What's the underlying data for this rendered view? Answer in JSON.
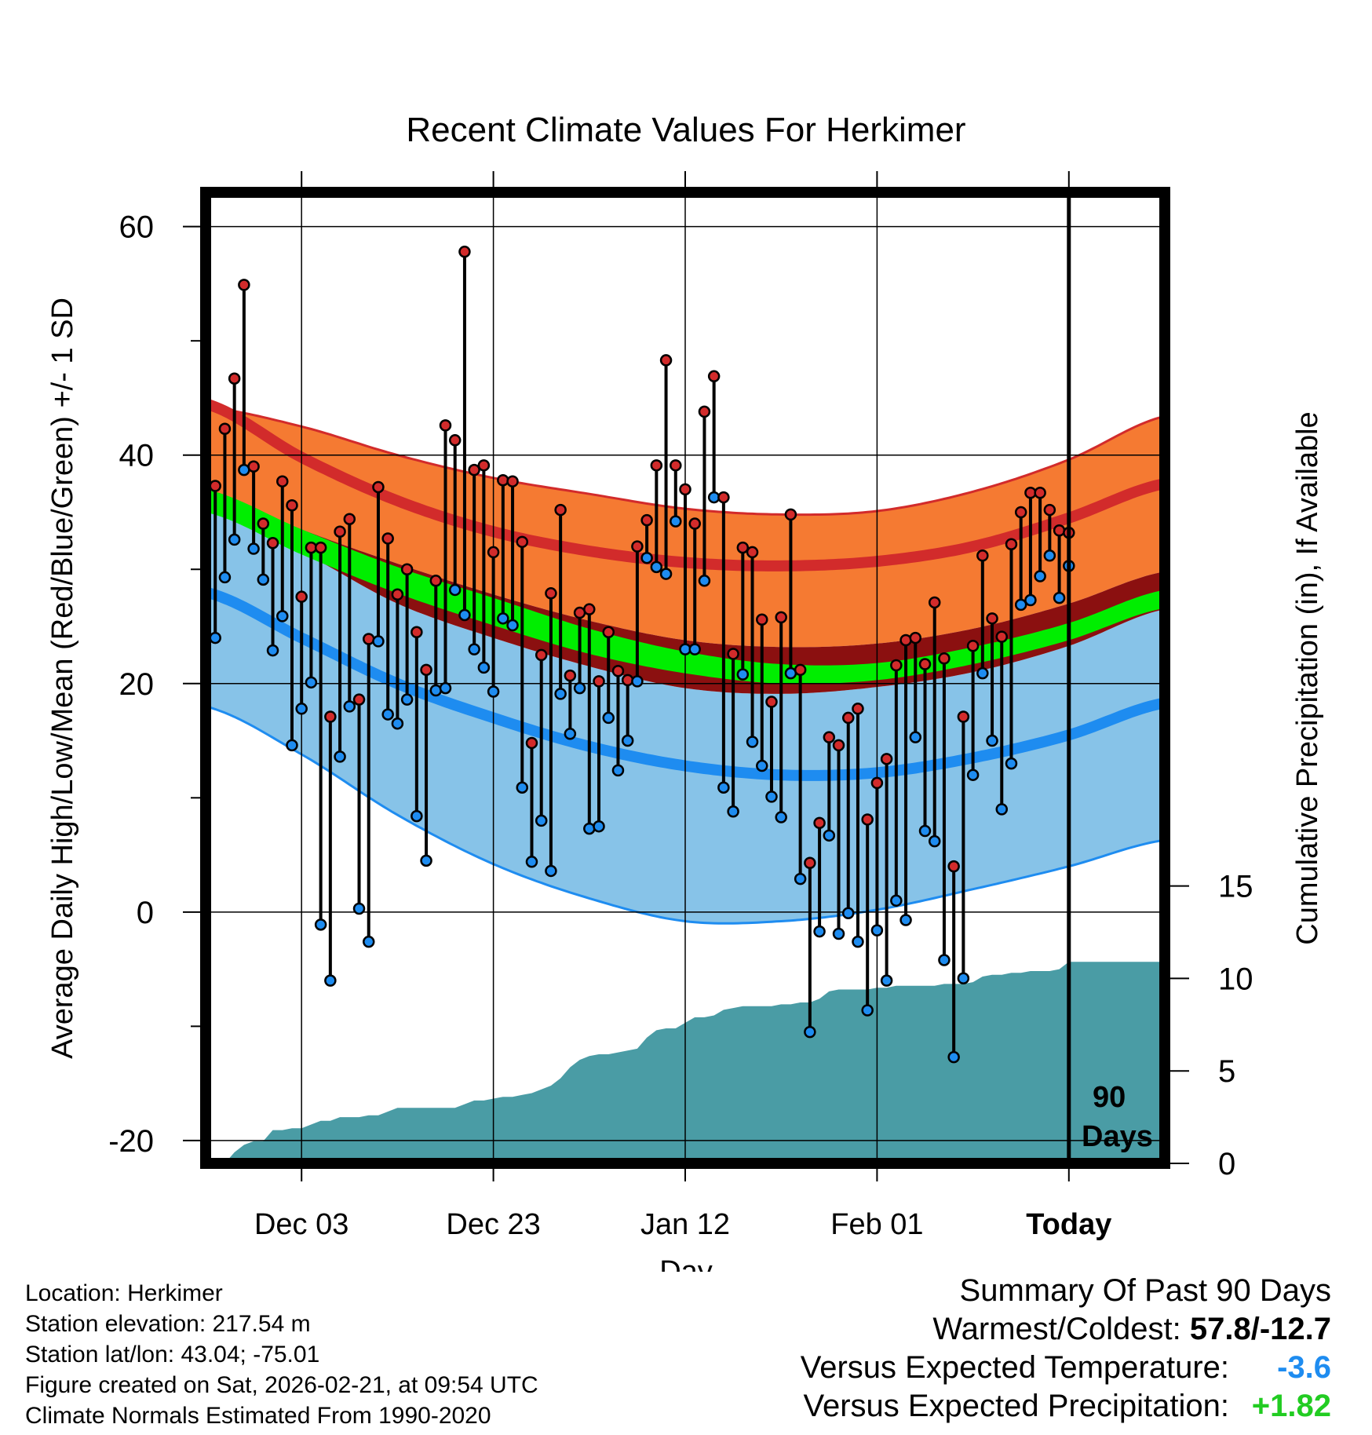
{
  "colors": {
    "high_band": "#f57a32",
    "high_band_edge": "#d22b2b",
    "high_mean_line": "#d22b2b",
    "low_band": "#87c3e8",
    "low_band_edge": "#1e8cf0",
    "low_mean_line": "#1e8cf0",
    "overlap_band": "#8b1010",
    "mean_band": "#00ee00",
    "precip_fill": "#4a9ca5",
    "high_dot": "#d22b2b",
    "low_dot": "#1e8cf0",
    "negative_departure": "#1e8cf0",
    "positive_departure": "#22cc22"
  },
  "chart_data": {
    "type": "line",
    "title": "Recent Climate Values For Herkimer",
    "xlabel": "Day",
    "ylabel": "Average Daily High/Low/Mean (Red/Blue/Green) +/- 1 SD",
    "ylabel_right": "Cumulative Precipitation (in), If Available",
    "xlim": [
      0,
      100
    ],
    "ylim": [
      -22,
      63
    ],
    "ylim_right": [
      0,
      52.5
    ],
    "yticks": [
      -20,
      0,
      20,
      40,
      60
    ],
    "yticks_right": [
      0,
      5,
      10,
      15
    ],
    "xticks": [
      {
        "day": 10,
        "label": "Dec 03"
      },
      {
        "day": 30,
        "label": "Dec 23"
      },
      {
        "day": 50,
        "label": "Jan 12"
      },
      {
        "day": 70,
        "label": "Feb 01"
      },
      {
        "day": 90,
        "label": "Today"
      }
    ],
    "today_day": 90,
    "period_label_top": "90",
    "period_label_bottom": "Days",
    "normals": {
      "days": [
        0,
        10,
        20,
        30,
        40,
        50,
        60,
        70,
        80,
        90,
        100
      ],
      "high_plus_sd": [
        44.2,
        42.5,
        40.0,
        38.0,
        36.6,
        35.3,
        34.8,
        35.1,
        36.8,
        39.6,
        43.4
      ],
      "high_mean": [
        44.5,
        39.8,
        36.0,
        33.3,
        31.6,
        30.6,
        30.3,
        30.7,
        32.0,
        34.5,
        37.5
      ],
      "high_minus_sd": [
        37.0,
        33.5,
        30.5,
        27.8,
        25.5,
        23.8,
        23.2,
        23.5,
        24.8,
        27.0,
        29.8
      ],
      "mean_plus": [
        37.0,
        33.5,
        30.2,
        27.5,
        24.8,
        22.8,
        21.7,
        21.8,
        23.2,
        25.3,
        28.2
      ],
      "mean_minus": [
        35.0,
        31.3,
        27.9,
        25.1,
        22.6,
        20.9,
        20.0,
        20.3,
        21.7,
        23.8,
        26.6
      ],
      "low_plus_sd": [
        35.0,
        31.5,
        27.0,
        24.0,
        21.5,
        19.6,
        19.1,
        19.7,
        21.0,
        23.3,
        26.5
      ],
      "low_mean": [
        28.0,
        24.0,
        20.0,
        17.0,
        14.5,
        12.8,
        12.0,
        12.2,
        13.5,
        15.5,
        18.3
      ],
      "low_minus_sd": [
        18.0,
        13.8,
        8.5,
        4.2,
        1.2,
        -0.8,
        -0.8,
        0.2,
        2.0,
        4.0,
        6.3
      ]
    },
    "series": [
      {
        "name": "Daily High",
        "values": [
          37.3,
          42.3,
          46.7,
          54.9,
          39.0,
          34.0,
          32.3,
          37.7,
          35.6,
          27.6,
          31.9,
          31.9,
          17.1,
          33.3,
          34.4,
          18.6,
          23.9,
          37.2,
          32.7,
          27.8,
          30.0,
          24.5,
          21.2,
          29.0,
          42.6,
          41.3,
          57.8,
          38.7,
          39.1,
          31.5,
          37.8,
          37.7,
          32.4,
          14.8,
          22.5,
          27.9,
          35.2,
          20.7,
          26.2,
          26.5,
          20.2,
          24.5,
          21.1,
          20.3,
          32.0,
          34.3,
          39.1,
          48.3,
          39.1,
          37.0,
          34.0,
          43.8,
          46.9,
          36.3,
          22.6,
          31.9,
          31.5,
          25.6,
          18.4,
          25.8,
          34.8,
          21.2,
          4.3,
          7.8,
          15.3,
          14.6,
          17.0,
          17.8,
          8.1,
          11.3,
          13.4,
          21.6,
          23.8,
          24.0,
          21.7,
          27.1,
          22.2,
          4.0,
          17.1,
          23.3,
          31.2,
          25.7,
          24.1,
          32.2,
          35.0,
          36.7,
          36.7,
          35.2,
          33.4,
          33.2
        ]
      },
      {
        "name": "Daily Low",
        "values": [
          24.0,
          29.3,
          32.6,
          38.7,
          31.8,
          29.1,
          22.9,
          25.9,
          14.6,
          17.8,
          20.1,
          -1.1,
          -6.0,
          13.6,
          18.0,
          0.3,
          -2.6,
          23.7,
          17.3,
          16.5,
          18.6,
          8.4,
          4.5,
          19.4,
          19.6,
          28.2,
          26.0,
          23.0,
          21.4,
          19.3,
          25.7,
          25.1,
          10.9,
          4.4,
          8.0,
          3.6,
          19.1,
          15.6,
          19.6,
          7.3,
          7.5,
          17.0,
          12.4,
          15.0,
          20.2,
          31.0,
          30.2,
          29.6,
          34.2,
          23.0,
          23.0,
          29.0,
          36.3,
          10.9,
          8.8,
          20.8,
          14.9,
          12.8,
          10.1,
          8.3,
          20.9,
          2.9,
          -10.5,
          -1.7,
          6.7,
          -1.9,
          -0.1,
          -2.6,
          -8.6,
          -1.6,
          -6.0,
          1.0,
          -0.7,
          15.3,
          7.1,
          6.2,
          -4.2,
          -12.7,
          -5.8,
          12.0,
          20.9,
          15.0,
          9.0,
          13.0,
          26.9,
          27.3,
          29.4,
          31.2,
          27.5,
          30.3
        ]
      },
      {
        "name": "Cumulative Precipitation",
        "values": [
          0.0,
          0.0,
          0.6,
          1.0,
          1.2,
          1.2,
          1.8,
          1.8,
          1.9,
          1.9,
          2.1,
          2.3,
          2.3,
          2.5,
          2.5,
          2.5,
          2.6,
          2.6,
          2.8,
          3.0,
          3.0,
          3.0,
          3.0,
          3.0,
          3.0,
          3.0,
          3.2,
          3.4,
          3.4,
          3.5,
          3.6,
          3.6,
          3.7,
          3.8,
          4.0,
          4.2,
          4.6,
          5.2,
          5.6,
          5.8,
          5.9,
          5.9,
          6.0,
          6.1,
          6.2,
          6.8,
          7.2,
          7.3,
          7.3,
          7.6,
          7.9,
          7.9,
          8.0,
          8.3,
          8.4,
          8.5,
          8.5,
          8.5,
          8.5,
          8.6,
          8.6,
          8.7,
          8.7,
          8.9,
          9.3,
          9.4,
          9.4,
          9.4,
          9.4,
          9.5,
          9.5,
          9.6,
          9.6,
          9.6,
          9.6,
          9.6,
          9.7,
          9.7,
          9.7,
          9.8,
          10.1,
          10.2,
          10.2,
          10.3,
          10.3,
          10.4,
          10.4,
          10.4,
          10.5,
          10.9,
          10.9
        ]
      }
    ]
  },
  "footer": {
    "location": "Location: Herkimer",
    "elevation": "Station elevation: 217.54 m",
    "latlon": "Station lat/lon: 43.04; -75.01",
    "created": "Figure created on Sat, 2026-02-21, at 09:54 UTC",
    "normals": "Climate Normals Estimated From 1990-2020"
  },
  "summary": {
    "title": "Summary Of Past 90 Days",
    "warmest_coldest_label": "Warmest/Coldest: ",
    "warmest_coldest_value": "57.8/-12.7",
    "temp_label": "Versus Expected Temperature:",
    "temp_value": "-3.6",
    "precip_label": "Versus Expected Precipitation:",
    "precip_value": "+1.82"
  }
}
